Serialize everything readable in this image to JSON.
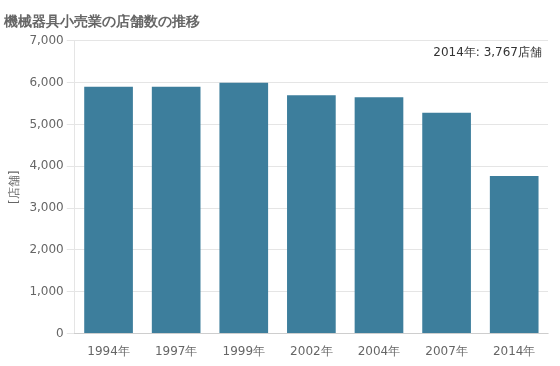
{
  "chart_data": {
    "type": "bar",
    "title": "機械器具小売業の店舗数の推移",
    "ylabel": "[店舗]",
    "annotation": "2014年: 3,767店舗",
    "categories": [
      "1994年",
      "1997年",
      "1999年",
      "2002年",
      "2004年",
      "2007年",
      "2014年"
    ],
    "values": [
      5900,
      5900,
      6000,
      5700,
      5650,
      5280,
      3767
    ],
    "color": "#3d7e9c",
    "ylim": [
      0,
      7000
    ],
    "yticks": [
      0,
      {
        "value": 1000,
        "label": "1,000"
      },
      {
        "value": 2000,
        "label": "2,000"
      },
      {
        "value": 3000,
        "label": "3,000"
      },
      {
        "value": 4000,
        "label": "4,000"
      },
      {
        "value": 5000,
        "label": "5,000"
      },
      {
        "value": 6000,
        "label": "6,000"
      },
      {
        "value": 7000,
        "label": "7,000"
      }
    ],
    "grid": true
  }
}
